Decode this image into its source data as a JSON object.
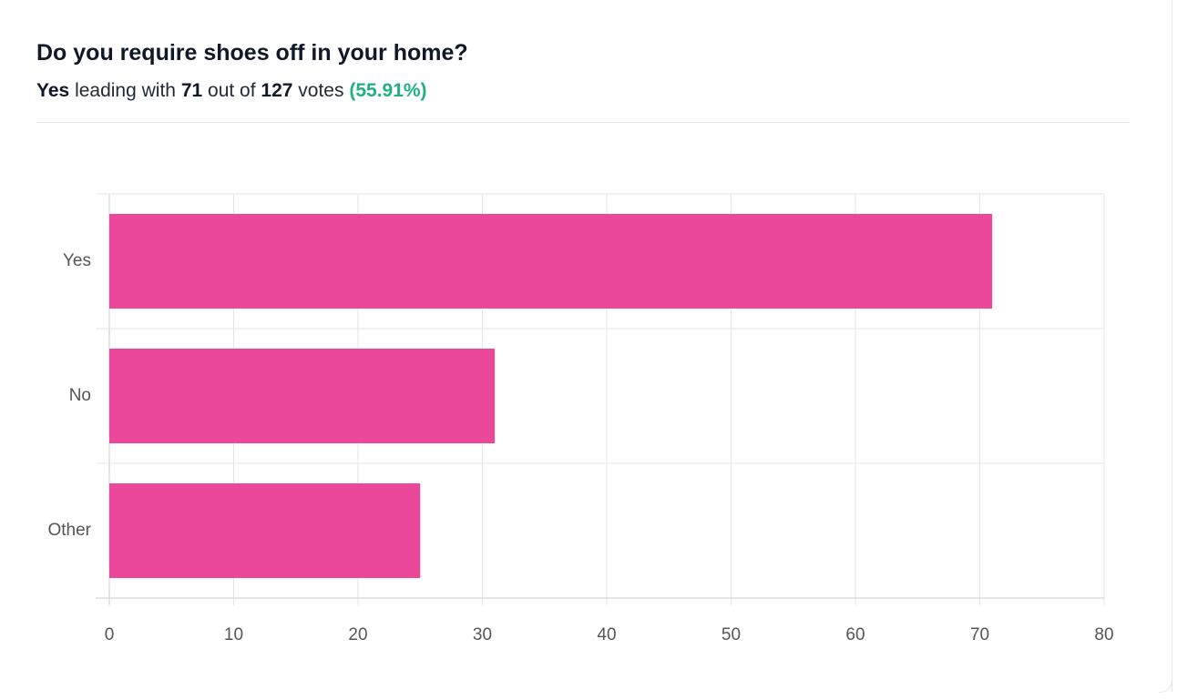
{
  "header": {
    "title": "Do you require shoes off in your home?",
    "subtitle": {
      "leader": "Yes",
      "leading_with": "leading with",
      "count": "71",
      "out_of": "out of",
      "total": "127",
      "votes": "votes",
      "percent": "(55.91%)"
    }
  },
  "chart_data": {
    "type": "hbar",
    "categories": [
      "Yes",
      "No",
      "Other"
    ],
    "values": [
      71,
      31,
      25
    ],
    "color": "#ec4899",
    "xlim": [
      0,
      80
    ],
    "xticks": [
      0,
      10,
      20,
      30,
      40,
      50,
      60,
      70,
      80
    ],
    "grid": true
  }
}
